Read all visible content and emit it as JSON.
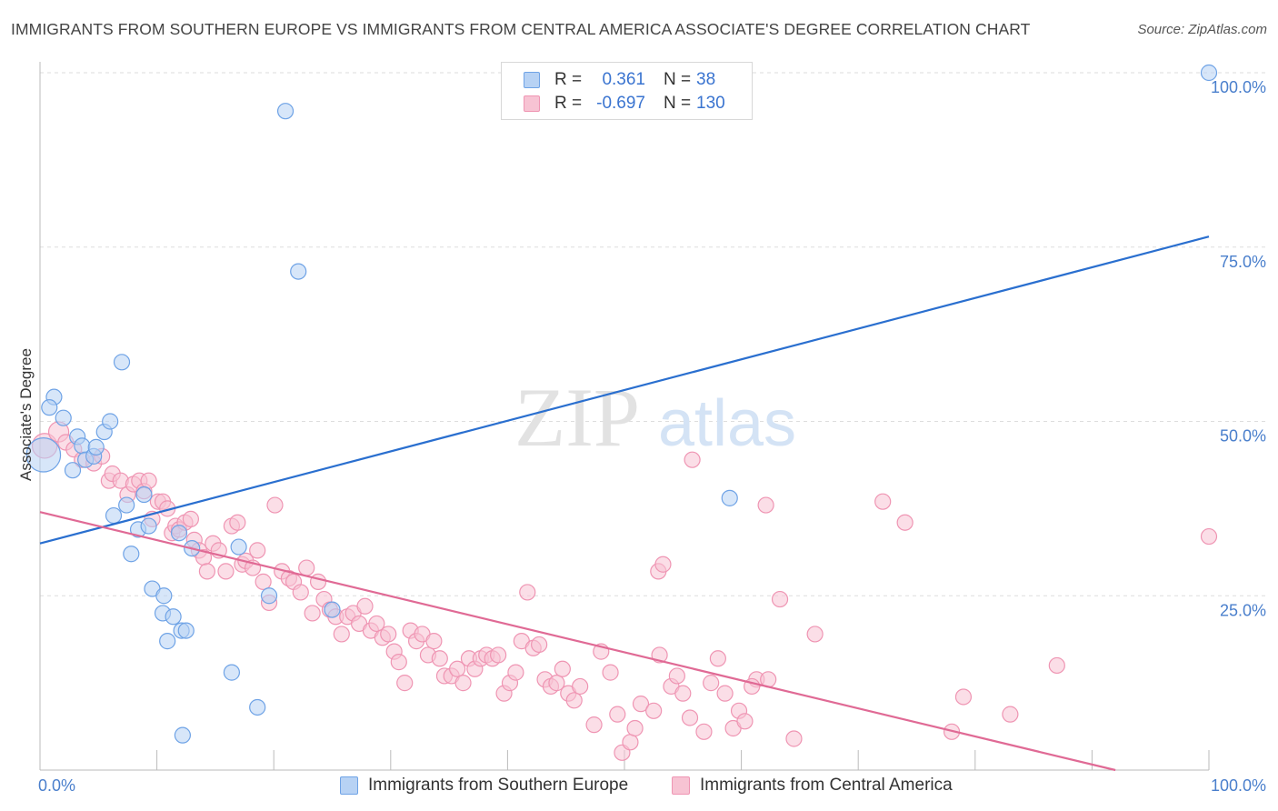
{
  "chart_data": {
    "type": "scatter",
    "title": "IMMIGRANTS FROM SOUTHERN EUROPE VS IMMIGRANTS FROM CENTRAL AMERICA ASSOCIATE'S DEGREE CORRELATION CHART",
    "source": "Source: ZipAtlas.com",
    "watermark": {
      "zip": "ZIP",
      "atlas": "atlas"
    },
    "xlabel": "",
    "ylabel": "Associate's Degree",
    "xlim": [
      0,
      100
    ],
    "ylim": [
      0,
      100
    ],
    "x_tick_labels": {
      "left": "0.0%",
      "right": "100.0%"
    },
    "y_tick_values": [
      25,
      50,
      75,
      100
    ],
    "y_tick_labels": [
      "25.0%",
      "50.0%",
      "75.0%",
      "100.0%"
    ],
    "series": [
      {
        "name": "Immigrants from Southern Europe",
        "color": "#6fa3e6",
        "fill": "#b7d2f4",
        "line_color": "#2a6fcf",
        "R": "0.361",
        "N": "38",
        "trend": {
          "x": [
            0,
            100
          ],
          "y": [
            32.5,
            76.5
          ]
        },
        "points": [
          [
            0.3,
            45.2,
            2.2
          ],
          [
            1.2,
            53.5,
            1
          ],
          [
            0.8,
            52.0,
            1
          ],
          [
            2.0,
            50.5,
            1
          ],
          [
            3.2,
            47.8,
            1
          ],
          [
            3.6,
            46.5,
            1
          ],
          [
            2.8,
            43.0,
            1
          ],
          [
            3.9,
            44.5,
            1
          ],
          [
            4.6,
            45.0,
            1
          ],
          [
            4.8,
            46.3,
            1
          ],
          [
            5.5,
            48.5,
            1
          ],
          [
            6.0,
            50.0,
            1
          ],
          [
            7.0,
            58.5,
            1
          ],
          [
            6.3,
            36.5,
            1
          ],
          [
            7.4,
            38.0,
            1
          ],
          [
            8.4,
            34.5,
            1
          ],
          [
            8.9,
            39.5,
            1
          ],
          [
            9.3,
            35.0,
            1
          ],
          [
            7.8,
            31.0,
            1
          ],
          [
            9.6,
            26.0,
            1
          ],
          [
            10.6,
            25.0,
            1
          ],
          [
            10.5,
            22.5,
            1
          ],
          [
            11.4,
            22.0,
            1
          ],
          [
            10.9,
            18.5,
            1
          ],
          [
            12.1,
            20.0,
            1
          ],
          [
            12.5,
            20.0,
            1
          ],
          [
            11.9,
            34.0,
            1
          ],
          [
            13.0,
            31.8,
            1
          ],
          [
            12.2,
            5.0,
            1
          ],
          [
            16.4,
            14.0,
            1
          ],
          [
            17.0,
            32.0,
            1
          ],
          [
            18.6,
            9.0,
            1
          ],
          [
            19.6,
            25.0,
            1
          ],
          [
            21.0,
            94.5,
            1
          ],
          [
            22.1,
            71.5,
            1
          ],
          [
            25.0,
            23.0,
            1
          ],
          [
            59.0,
            39.0,
            1
          ],
          [
            100.0,
            100.0,
            1
          ]
        ]
      },
      {
        "name": "Immigrants from Central America",
        "color": "#ef95b3",
        "fill": "#f7c3d3",
        "line_color": "#e06a95",
        "R": "-0.697",
        "N": "130",
        "trend": {
          "x": [
            0,
            92
          ],
          "y": [
            37.0,
            0
          ]
        },
        "points": [
          [
            0.4,
            46.5,
            1.6
          ],
          [
            1.6,
            48.5,
            1.3
          ],
          [
            2.2,
            47.0,
            1
          ],
          [
            2.9,
            46.0,
            1
          ],
          [
            3.6,
            44.5,
            1
          ],
          [
            4.6,
            44.0,
            1
          ],
          [
            5.3,
            45.0,
            1
          ],
          [
            5.9,
            41.5,
            1
          ],
          [
            6.2,
            42.5,
            1
          ],
          [
            6.9,
            41.5,
            1
          ],
          [
            7.5,
            39.5,
            1
          ],
          [
            8.0,
            41.0,
            1
          ],
          [
            8.5,
            41.5,
            1
          ],
          [
            8.9,
            40.0,
            1
          ],
          [
            9.3,
            41.5,
            1
          ],
          [
            9.6,
            36.0,
            1
          ],
          [
            10.1,
            38.5,
            1
          ],
          [
            10.5,
            38.5,
            1
          ],
          [
            10.9,
            37.5,
            1
          ],
          [
            11.3,
            34.0,
            1
          ],
          [
            11.6,
            35.0,
            1
          ],
          [
            11.9,
            34.5,
            1
          ],
          [
            12.4,
            35.5,
            1
          ],
          [
            12.9,
            36.0,
            1
          ],
          [
            13.2,
            33.0,
            1
          ],
          [
            13.6,
            31.5,
            1
          ],
          [
            14.0,
            30.5,
            1
          ],
          [
            14.3,
            28.5,
            1
          ],
          [
            14.8,
            32.5,
            1
          ],
          [
            15.3,
            31.5,
            1
          ],
          [
            15.9,
            28.5,
            1
          ],
          [
            16.4,
            35.0,
            1
          ],
          [
            16.9,
            35.5,
            1
          ],
          [
            17.3,
            29.5,
            1
          ],
          [
            17.6,
            30.0,
            1
          ],
          [
            18.2,
            29.0,
            1
          ],
          [
            18.6,
            31.5,
            1
          ],
          [
            19.1,
            27.0,
            1
          ],
          [
            19.6,
            24.0,
            1
          ],
          [
            20.1,
            38.0,
            1
          ],
          [
            20.7,
            28.5,
            1
          ],
          [
            21.3,
            27.5,
            1
          ],
          [
            21.7,
            27.0,
            1
          ],
          [
            22.3,
            25.5,
            1
          ],
          [
            22.8,
            29.0,
            1
          ],
          [
            23.3,
            22.5,
            1
          ],
          [
            23.8,
            27.0,
            1
          ],
          [
            24.3,
            24.5,
            1
          ],
          [
            24.8,
            23.0,
            1
          ],
          [
            25.3,
            22.0,
            1
          ],
          [
            25.8,
            19.5,
            1
          ],
          [
            26.3,
            22.0,
            1
          ],
          [
            26.8,
            22.5,
            1
          ],
          [
            27.3,
            21.0,
            1
          ],
          [
            27.8,
            23.5,
            1
          ],
          [
            28.3,
            20.0,
            1
          ],
          [
            28.8,
            21.0,
            1
          ],
          [
            29.3,
            19.0,
            1
          ],
          [
            29.8,
            19.5,
            1
          ],
          [
            30.3,
            17.0,
            1
          ],
          [
            30.7,
            15.5,
            1
          ],
          [
            31.2,
            12.5,
            1
          ],
          [
            31.7,
            20.0,
            1
          ],
          [
            32.2,
            18.5,
            1
          ],
          [
            32.7,
            19.5,
            1
          ],
          [
            33.2,
            16.5,
            1
          ],
          [
            33.7,
            18.5,
            1
          ],
          [
            34.2,
            16.0,
            1
          ],
          [
            34.6,
            13.5,
            1
          ],
          [
            35.2,
            13.5,
            1
          ],
          [
            35.7,
            14.5,
            1
          ],
          [
            36.2,
            12.5,
            1
          ],
          [
            36.7,
            16.0,
            1
          ],
          [
            37.2,
            14.5,
            1
          ],
          [
            37.7,
            16.0,
            1
          ],
          [
            38.2,
            16.5,
            1
          ],
          [
            38.7,
            16.0,
            1
          ],
          [
            39.2,
            16.5,
            1
          ],
          [
            39.7,
            11.0,
            1
          ],
          [
            40.2,
            12.5,
            1
          ],
          [
            40.7,
            14.0,
            1
          ],
          [
            41.2,
            18.5,
            1
          ],
          [
            41.7,
            25.5,
            1
          ],
          [
            42.2,
            17.5,
            1
          ],
          [
            42.7,
            18.0,
            1
          ],
          [
            43.2,
            13.0,
            1
          ],
          [
            43.7,
            12.0,
            1
          ],
          [
            44.2,
            12.5,
            1
          ],
          [
            44.7,
            14.5,
            1
          ],
          [
            45.2,
            11.0,
            1
          ],
          [
            45.7,
            10.0,
            1
          ],
          [
            46.2,
            12.0,
            1
          ],
          [
            47.4,
            6.5,
            1
          ],
          [
            48.0,
            17.0,
            1
          ],
          [
            48.8,
            14.0,
            1
          ],
          [
            49.4,
            8.0,
            1
          ],
          [
            49.8,
            2.5,
            1
          ],
          [
            50.5,
            4.0,
            1
          ],
          [
            50.9,
            6.0,
            1
          ],
          [
            51.4,
            9.5,
            1
          ],
          [
            52.5,
            8.5,
            1
          ],
          [
            53.0,
            16.5,
            1
          ],
          [
            54.0,
            12.0,
            1
          ],
          [
            54.5,
            13.5,
            1
          ],
          [
            55.0,
            11.0,
            1
          ],
          [
            55.6,
            7.5,
            1
          ],
          [
            56.8,
            5.5,
            1
          ],
          [
            57.4,
            12.5,
            1
          ],
          [
            58.0,
            16.0,
            1
          ],
          [
            58.6,
            11.0,
            1
          ],
          [
            59.3,
            6.0,
            1
          ],
          [
            59.8,
            8.5,
            1
          ],
          [
            60.3,
            7.0,
            1
          ],
          [
            61.3,
            13.0,
            1
          ],
          [
            62.3,
            13.0,
            1
          ],
          [
            52.9,
            28.5,
            1
          ],
          [
            53.3,
            29.5,
            1
          ],
          [
            55.8,
            44.5,
            1
          ],
          [
            62.1,
            38.0,
            1
          ],
          [
            63.3,
            24.5,
            1
          ],
          [
            64.5,
            4.5,
            1
          ],
          [
            66.3,
            19.5,
            1
          ],
          [
            72.1,
            38.5,
            1
          ],
          [
            74.0,
            35.5,
            1
          ],
          [
            78.0,
            5.5,
            1
          ],
          [
            79.0,
            10.5,
            1
          ],
          [
            83.0,
            8.0,
            1
          ],
          [
            87.0,
            15.0,
            1
          ],
          [
            100.0,
            33.5,
            1
          ],
          [
            60.9,
            12.0,
            1
          ]
        ]
      }
    ]
  }
}
